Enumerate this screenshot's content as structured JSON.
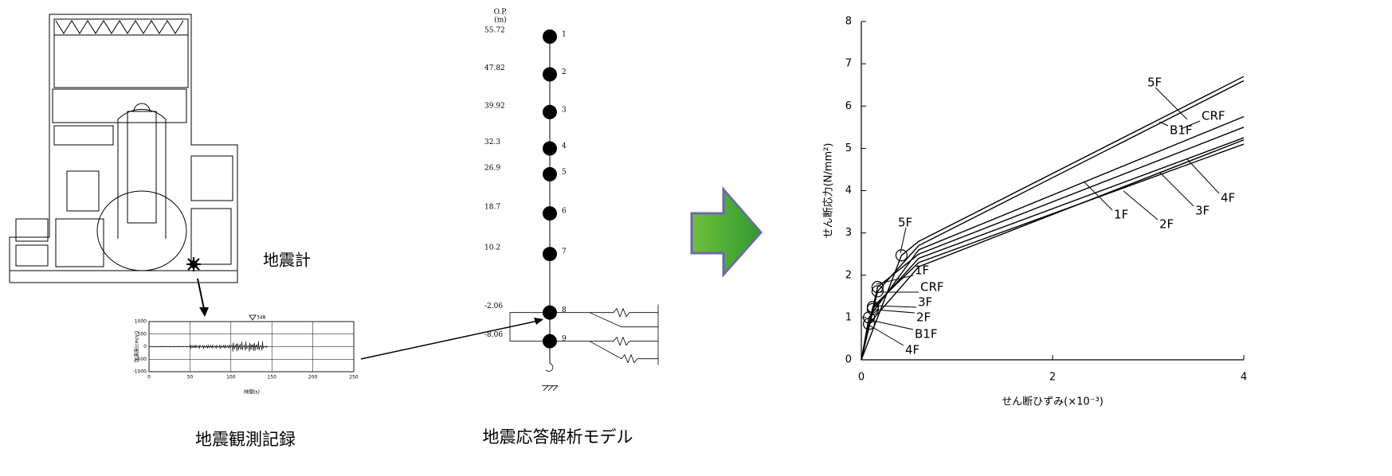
{
  "left": {
    "seismometer_label": "地震計",
    "caption": "地震観測記録",
    "record": {
      "y_label": "加速度(cm/s²)",
      "x_label": "時間(s)",
      "peak_label": "348",
      "xlim": [
        0,
        250
      ],
      "ylim": [
        -1000,
        1000
      ],
      "xticks": [
        0,
        50,
        100,
        150,
        200,
        250
      ],
      "yticks": [
        1000,
        500,
        0,
        -500,
        -1000
      ]
    }
  },
  "model": {
    "unit_top": "O.P.",
    "unit_bottom": "(m)",
    "caption": "地震応答解析モデル",
    "nodes": [
      {
        "label": "1",
        "elevation": 55.72
      },
      {
        "label": "2",
        "elevation": 47.82
      },
      {
        "label": "3",
        "elevation": 39.92
      },
      {
        "label": "4",
        "elevation": 32.3
      },
      {
        "label": "5",
        "elevation": 26.9
      },
      {
        "label": "6",
        "elevation": 18.7
      },
      {
        "label": "7",
        "elevation": 10.2
      },
      {
        "label": "8",
        "elevation": -2.06
      },
      {
        "label": "9",
        "elevation": -8.06
      }
    ]
  },
  "chart_data": {
    "type": "line",
    "x_label": "せん断ひずみ(×10⁻³)",
    "y_label": "せん断応力(N/mm²)",
    "xlim": [
      0,
      4
    ],
    "ylim": [
      0,
      8
    ],
    "xticks": [
      0,
      2,
      4
    ],
    "yticks": [
      0,
      1,
      2,
      3,
      4,
      5,
      6,
      7,
      8
    ],
    "color": "#000000",
    "series": [
      {
        "name": "5F",
        "x": [
          0,
          0.42,
          0.6,
          4
        ],
        "values": [
          0,
          2.47,
          2.8,
          6.7
        ]
      },
      {
        "name": "CRF",
        "x": [
          0,
          0.17,
          0.6,
          4
        ],
        "values": [
          0,
          1.62,
          2.7,
          6.6
        ]
      },
      {
        "name": "B1F",
        "x": [
          0,
          0.08,
          0.6,
          4
        ],
        "values": [
          0,
          1.0,
          2.6,
          5.75
        ]
      },
      {
        "name": "1F",
        "x": [
          0,
          0.17,
          0.6,
          4
        ],
        "values": [
          0,
          1.72,
          2.5,
          5.5
        ]
      },
      {
        "name": "2F",
        "x": [
          0,
          0.12,
          0.6,
          4
        ],
        "values": [
          0,
          1.2,
          2.4,
          5.25
        ]
      },
      {
        "name": "3F",
        "x": [
          0,
          0.12,
          0.6,
          4
        ],
        "values": [
          0,
          1.25,
          2.3,
          5.1
        ]
      },
      {
        "name": "4F",
        "x": [
          0,
          0.08,
          0.6,
          4
        ],
        "values": [
          0,
          0.85,
          2.2,
          5.2
        ]
      }
    ]
  }
}
